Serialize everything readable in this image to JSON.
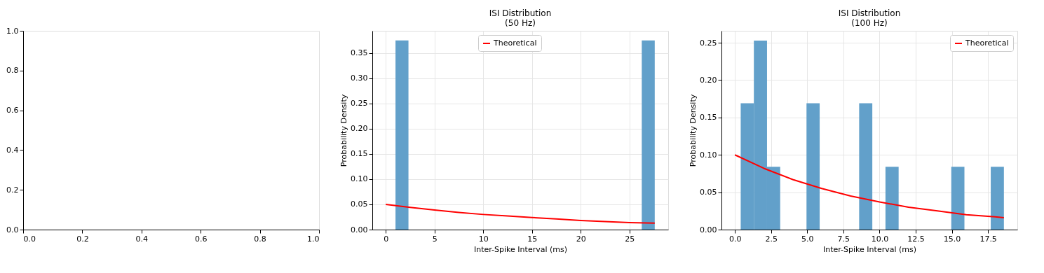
{
  "chart_data": [
    {
      "type": "scatter",
      "xlim": [
        0,
        1
      ],
      "ylim": [
        0,
        1
      ],
      "xticks": [
        {
          "value": 0,
          "label": "0.0"
        },
        0.2,
        0.4,
        0.6,
        0.8,
        {
          "value": 1,
          "label": "1.0"
        }
      ],
      "yticks": [
        {
          "value": 0,
          "label": "0.0"
        },
        0.2,
        0.4,
        0.6,
        0.8,
        {
          "value": 1,
          "label": "1.0"
        }
      ],
      "grid": false
    },
    {
      "type": "histogram",
      "title": "ISI Distribution\n(50 Hz)",
      "xlabel": "Inter-Spike Interval (ms)",
      "ylabel": "Probability Density",
      "xlim": [
        -1.38,
        28.98
      ],
      "ylim": [
        0,
        0.394
      ],
      "xticks": [
        0,
        5,
        10,
        15,
        20,
        25
      ],
      "yticks": [
        {
          "value": 0,
          "label": "0.00"
        },
        0.05,
        {
          "value": 0.1,
          "label": "0.10"
        },
        0.15,
        {
          "value": 0.2,
          "label": "0.20"
        },
        0.25,
        {
          "value": 0.3,
          "label": "0.30"
        },
        0.35
      ],
      "grid": true,
      "legend": "top",
      "series": [
        {
          "type": "histogram",
          "color": "#62a0ca",
          "bins": [
            1.0,
            2.33,
            3.66,
            4.99,
            6.32,
            7.65,
            8.98,
            10.31,
            11.64,
            12.97,
            14.3,
            15.63,
            16.96,
            18.29,
            19.62,
            20.95,
            22.28,
            23.61,
            24.94,
            26.27,
            27.6
          ],
          "values": [
            0.375,
            0,
            0,
            0,
            0,
            0,
            0,
            0,
            0,
            0,
            0,
            0,
            0,
            0,
            0,
            0,
            0,
            0,
            0,
            0.375
          ]
        },
        {
          "type": "line",
          "name": "Theoretical",
          "color": "#ff0000",
          "x": [
            0,
            2.5,
            5,
            7.5,
            10,
            12.5,
            15,
            17.5,
            20,
            22.5,
            25,
            27.6
          ],
          "values": [
            0.05,
            0.044,
            0.039,
            0.034,
            0.03,
            0.027,
            0.024,
            0.021,
            0.018,
            0.016,
            0.014,
            0.013
          ]
        }
      ]
    },
    {
      "type": "histogram",
      "title": "ISI Distribution\n(100 Hz)",
      "xlabel": "Inter-Spike Interval (ms)",
      "ylabel": "Probability Density",
      "xlim": [
        -0.93,
        19.53
      ],
      "ylim": [
        0,
        0.266
      ],
      "xticks": [
        {
          "value": 0,
          "label": "0.0"
        },
        2.5,
        {
          "value": 5,
          "label": "5.0"
        },
        7.5,
        {
          "value": 10,
          "label": "10.0"
        },
        12.5,
        {
          "value": 15,
          "label": "15.0"
        },
        17.5
      ],
      "yticks": [
        {
          "value": 0,
          "label": "0.00"
        },
        0.05,
        {
          "value": 0.1,
          "label": "0.10"
        },
        0.15,
        {
          "value": 0.2,
          "label": "0.20"
        },
        0.25
      ],
      "grid": true,
      "legend": "top right",
      "series": [
        {
          "type": "histogram",
          "color": "#62a0ca",
          "bins": [
            0.4,
            1.31,
            2.22,
            3.13,
            4.04,
            4.95,
            5.86,
            6.77,
            7.68,
            8.59,
            9.5,
            10.41,
            11.32,
            12.23,
            13.14,
            14.05,
            14.96,
            15.87,
            16.78,
            17.69,
            18.6
          ],
          "values": [
            0.169,
            0.253,
            0.084,
            0,
            0,
            0.169,
            0,
            0,
            0,
            0.169,
            0,
            0.084,
            0,
            0,
            0,
            0,
            0.084,
            0,
            0,
            0.084
          ]
        },
        {
          "type": "line",
          "name": "Theoretical",
          "color": "#ff0000",
          "x": [
            0,
            2,
            4,
            6,
            8,
            10,
            12,
            14,
            16,
            18,
            18.6
          ],
          "values": [
            0.1,
            0.082,
            0.067,
            0.055,
            0.045,
            0.037,
            0.03,
            0.025,
            0.02,
            0.017,
            0.016
          ]
        }
      ]
    }
  ]
}
